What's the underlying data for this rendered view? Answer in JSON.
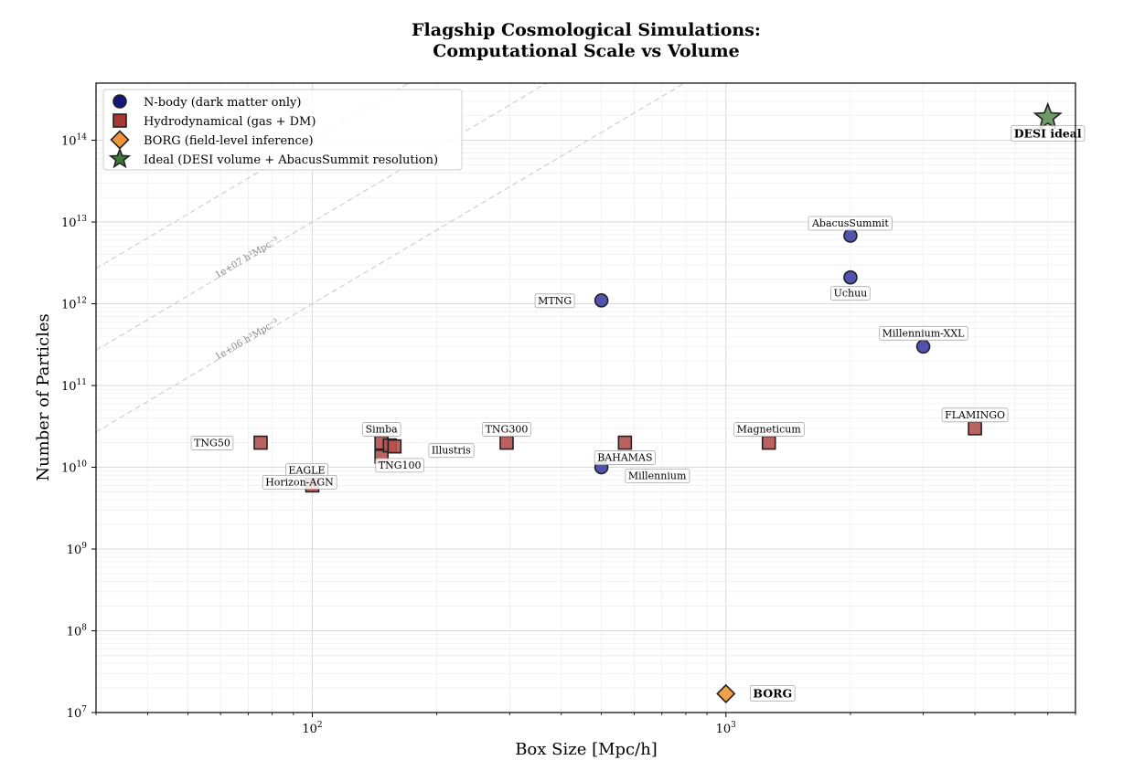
{
  "chart_data": {
    "type": "scatter",
    "title": [
      "Flagship Cosmological Simulations:",
      "Computational Scale vs Volume"
    ],
    "xlabel": "Box Size [Mpc/h]",
    "ylabel": "Number of Particles",
    "xscale": "log",
    "yscale": "log",
    "xlim": [
      30,
      7000
    ],
    "ylim": [
      10000000.0,
      500000000000000.0
    ],
    "grid": true,
    "legend_position": "upper-left",
    "x_ticks": [
      {
        "base": "10",
        "exp": "2",
        "value": 100
      },
      {
        "base": "10",
        "exp": "3",
        "value": 1000
      }
    ],
    "y_ticks": [
      {
        "base": "10",
        "exp": "7",
        "value": 10000000.0
      },
      {
        "base": "10",
        "exp": "8",
        "value": 100000000.0
      },
      {
        "base": "10",
        "exp": "9",
        "value": 1000000000.0
      },
      {
        "base": "10",
        "exp": "10",
        "value": 10000000000.0
      },
      {
        "base": "10",
        "exp": "11",
        "value": 100000000000.0
      },
      {
        "base": "10",
        "exp": "12",
        "value": 1000000000000.0
      },
      {
        "base": "10",
        "exp": "13",
        "value": 10000000000000.0
      },
      {
        "base": "10",
        "exp": "14",
        "value": 100000000000000.0
      }
    ],
    "iso_density_lines": [
      {
        "density": 100000000.0,
        "label": ""
      },
      {
        "density": 10000000.0,
        "label": "1e+07 h³Mpc⁻³"
      },
      {
        "density": 1000000.0,
        "label": "1e+06 h³Mpc⁻³"
      }
    ],
    "series": [
      {
        "name": "N-body (dark matter only)",
        "marker": "circle",
        "color": "#3f3fa6",
        "points": [
          {
            "label": "MTNG",
            "x": 500,
            "y": 1100000000000.0
          },
          {
            "label": "AbacusSummit",
            "x": 2000,
            "y": 6800000000000.0
          },
          {
            "label": "Uchuu",
            "x": 2000,
            "y": 2100000000000.0
          },
          {
            "label": "Millennium-XXL",
            "x": 3000,
            "y": 300000000000.0
          },
          {
            "label": "Millennium",
            "x": 500,
            "y": 10000000000.0
          }
        ]
      },
      {
        "name": "Hydrodynamical (gas + DM)",
        "marker": "square",
        "color": "#b5514f",
        "points": [
          {
            "label": "TNG50",
            "x": 75,
            "y": 20000000000.0
          },
          {
            "label": "EAGLE",
            "x": 100,
            "y": 7000000000.0
          },
          {
            "label": "Horizon-AGN",
            "x": 100,
            "y": 6000000000.0
          },
          {
            "label": "Simba",
            "x": 147,
            "y": 20000000000.0
          },
          {
            "label": "TNG100",
            "x": 147,
            "y": 13500000000.0
          },
          {
            "label": "",
            "x": 154,
            "y": 18500000000.0
          },
          {
            "label": "Illustris",
            "x": 158,
            "y": 18000000000.0
          },
          {
            "label": "TNG300",
            "x": 295,
            "y": 20000000000.0
          },
          {
            "label": "BAHAMAS",
            "x": 570,
            "y": 20000000000.0
          },
          {
            "label": "Magneticum",
            "x": 1270,
            "y": 20000000000.0
          },
          {
            "label": "FLAMINGO",
            "x": 4000,
            "y": 30000000000.0
          }
        ]
      },
      {
        "name": "BORG (field-level inference)",
        "marker": "diamond",
        "color": "#f0a24a",
        "points": [
          {
            "label": "BORG",
            "x": 1000,
            "y": 17000000.0
          }
        ]
      },
      {
        "name": "Ideal (DESI volume + AbacusSummit resolution)",
        "marker": "star",
        "color": "#5d8f58",
        "points": [
          {
            "label": "DESI ideal",
            "x": 6000,
            "y": 190000000000000.0
          }
        ]
      }
    ]
  }
}
